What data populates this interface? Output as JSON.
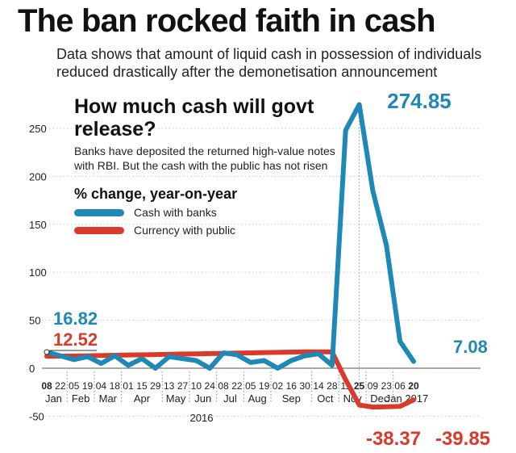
{
  "headline": "The ban rocked faith in cash",
  "dek": "Data shows that amount of liquid cash in possession of individuals reduced drastically after the demonetisation announcement",
  "subhead": "How much cash will govt release?",
  "note": "Banks have deposited the returned high-value notes with RBI. But the cash with the public has not risen",
  "legend_title": "% change, year-on-year",
  "colors": {
    "banks": "#1f88b6",
    "public": "#d93a2b",
    "grid": "#c8c8c8",
    "axis": "#555555"
  },
  "chart_data": {
    "type": "line",
    "title": "How much cash will govt release?",
    "ylabel": "% change, year-on-year",
    "ylim": [
      -50,
      290
    ],
    "yticks": [
      -50,
      0,
      50,
      100,
      150,
      200,
      250
    ],
    "grid": true,
    "legend_position": "top-left",
    "x": [
      "08",
      "22",
      "05",
      "19",
      "04",
      "18",
      "01",
      "15",
      "29",
      "13",
      "27",
      "10",
      "24",
      "08",
      "22",
      "05",
      "19",
      "02",
      "16",
      "30",
      "14",
      "28",
      "11",
      "25",
      "09",
      "23",
      "06",
      "20"
    ],
    "months": [
      {
        "label": "Jan",
        "from": 0,
        "to": 1
      },
      {
        "label": "Feb",
        "from": 2,
        "to": 3
      },
      {
        "label": "Mar",
        "from": 4,
        "to": 5
      },
      {
        "label": "Apr",
        "from": 6,
        "to": 8
      },
      {
        "label": "May",
        "from": 9,
        "to": 10
      },
      {
        "label": "Jun",
        "from": 11,
        "to": 12
      },
      {
        "label": "Jul",
        "from": 13,
        "to": 14
      },
      {
        "label": "Aug",
        "from": 15,
        "to": 16
      },
      {
        "label": "Sep",
        "from": 17,
        "to": 19
      },
      {
        "label": "Oct",
        "from": 20,
        "to": 21
      },
      {
        "label": "Nov",
        "from": 22,
        "to": 23
      },
      {
        "label": "Dec",
        "from": 24,
        "to": 25
      },
      {
        "label": "Jan 2017",
        "from": 26,
        "to": 27
      }
    ],
    "year_label": "2016",
    "series": [
      {
        "name": "Cash with banks",
        "color": "#1f88b6",
        "values": [
          16.82,
          13,
          9,
          12,
          5,
          13,
          3,
          10,
          0,
          12,
          10,
          8,
          0,
          16,
          14,
          6,
          8,
          0,
          8,
          13,
          15,
          3,
          248,
          274.85,
          185,
          128,
          28,
          7.08
        ]
      },
      {
        "name": "Currency with public",
        "color": "#d93a2b",
        "values": [
          12.52,
          12.6,
          12.7,
          13,
          13.2,
          13.5,
          13.8,
          14,
          14.2,
          14.5,
          14.8,
          15,
          15.2,
          15.5,
          15.8,
          16,
          16.3,
          16.5,
          16.8,
          17,
          17,
          17,
          -12,
          -38.37,
          -40.5,
          -40.2,
          -39.85,
          -33
        ]
      }
    ],
    "annotations": [
      {
        "series": 0,
        "index": 0,
        "text": "16.82"
      },
      {
        "series": 1,
        "index": 0,
        "text": "12.52"
      },
      {
        "series": 0,
        "index": 23,
        "text": "274.85"
      },
      {
        "series": 1,
        "index": 23,
        "text": "-38.37"
      },
      {
        "series": 0,
        "index": 27,
        "text": "7.08"
      },
      {
        "series": 1,
        "index": 26,
        "text": "-39.85"
      }
    ]
  }
}
